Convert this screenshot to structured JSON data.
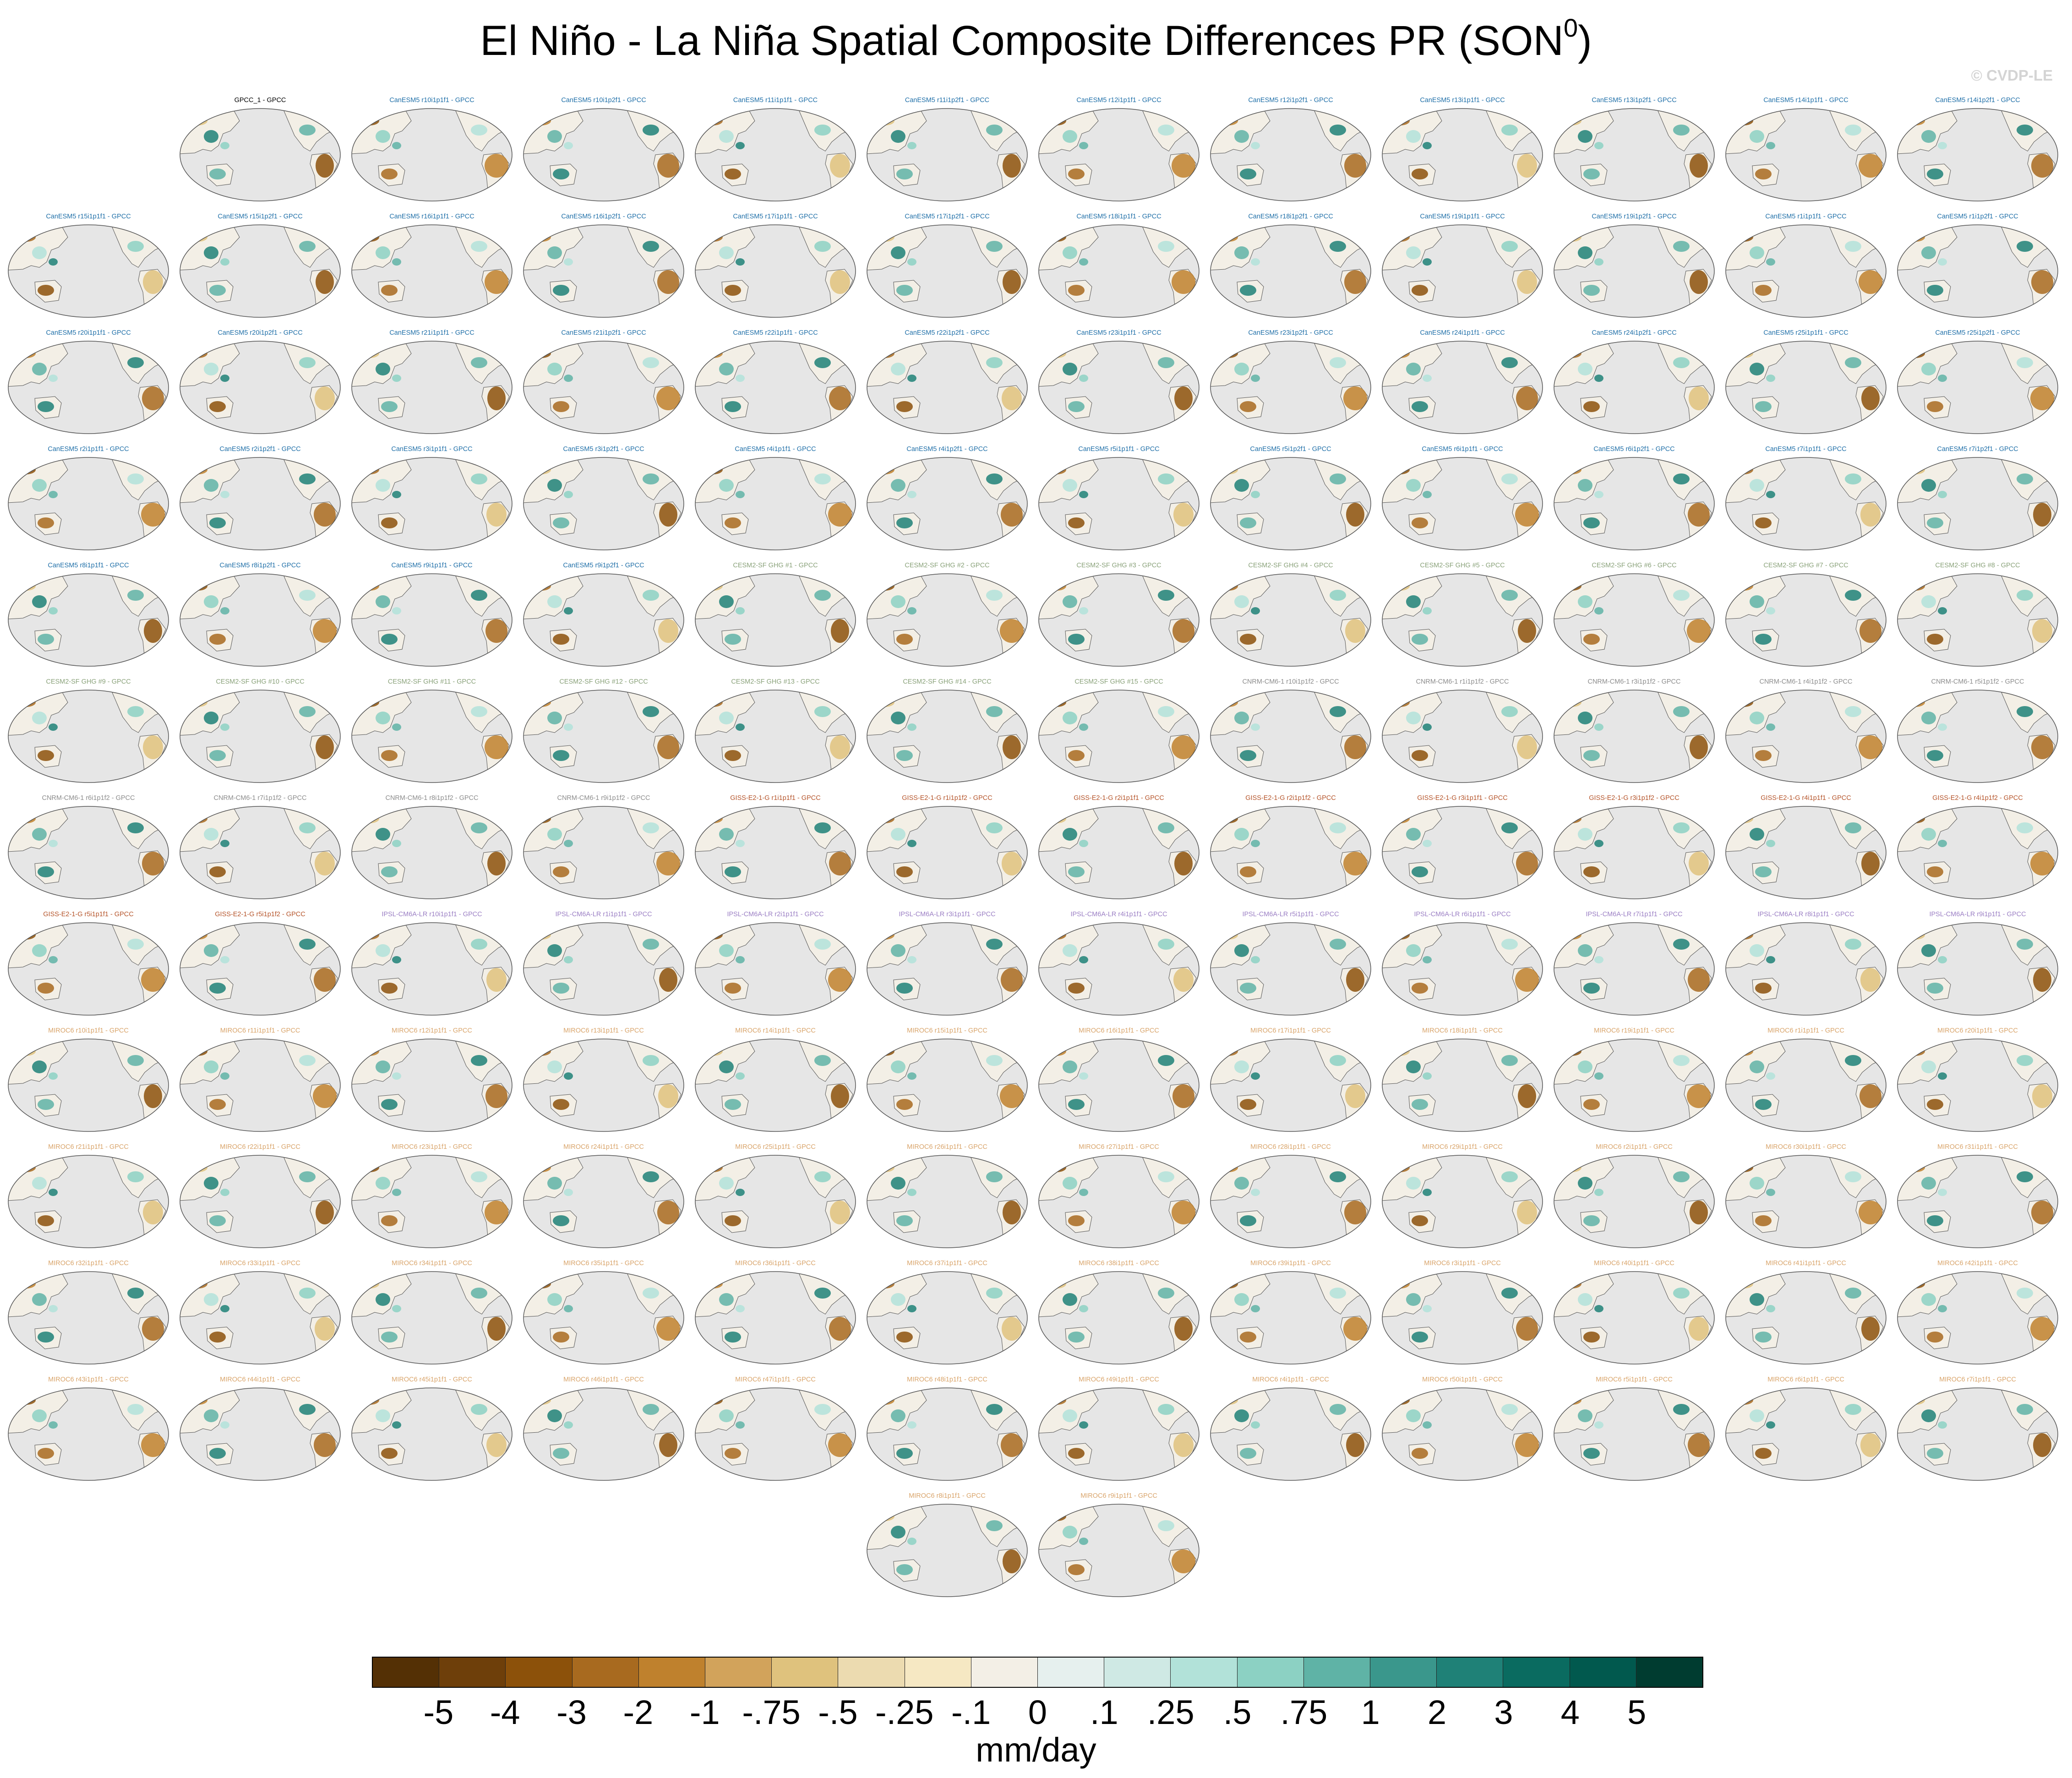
{
  "figure": {
    "title": "El Niño - La Niña Spatial Composite Differences PR (SON",
    "title_superscript": "0",
    "title_suffix": ")",
    "watermark": "© CVDP-LE"
  },
  "panel_rows": [
    [
      {
        "label": "GPCC_1 - GPCC",
        "color": "#000000"
      },
      {
        "label": "CanESM5 r10i1p1f1 - GPCC",
        "color": "#1f6fa8"
      },
      {
        "label": "CanESM5 r10i1p2f1 - GPCC",
        "color": "#1f6fa8"
      },
      {
        "label": "CanESM5 r11i1p1f1 - GPCC",
        "color": "#1f6fa8"
      },
      {
        "label": "CanESM5 r11i1p2f1 - GPCC",
        "color": "#1f6fa8"
      },
      {
        "label": "CanESM5 r12i1p1f1 - GPCC",
        "color": "#1f6fa8"
      },
      {
        "label": "CanESM5 r12i1p2f1 - GPCC",
        "color": "#1f6fa8"
      },
      {
        "label": "CanESM5 r13i1p1f1 - GPCC",
        "color": "#1f6fa8"
      },
      {
        "label": "CanESM5 r13i1p2f1 - GPCC",
        "color": "#1f6fa8"
      },
      {
        "label": "CanESM5 r14i1p1f1 - GPCC",
        "color": "#1f6fa8"
      },
      {
        "label": "CanESM5 r14i1p2f1 - GPCC",
        "color": "#1f6fa8"
      }
    ],
    [
      {
        "label": "CanESM5 r15i1p1f1 - GPCC",
        "color": "#1f6fa8"
      },
      {
        "label": "CanESM5 r15i1p2f1 - GPCC",
        "color": "#1f6fa8"
      },
      {
        "label": "CanESM5 r16i1p1f1 - GPCC",
        "color": "#1f6fa8"
      },
      {
        "label": "CanESM5 r16i1p2f1 - GPCC",
        "color": "#1f6fa8"
      },
      {
        "label": "CanESM5 r17i1p1f1 - GPCC",
        "color": "#1f6fa8"
      },
      {
        "label": "CanESM5 r17i1p2f1 - GPCC",
        "color": "#1f6fa8"
      },
      {
        "label": "CanESM5 r18i1p1f1 - GPCC",
        "color": "#1f6fa8"
      },
      {
        "label": "CanESM5 r18i1p2f1 - GPCC",
        "color": "#1f6fa8"
      },
      {
        "label": "CanESM5 r19i1p1f1 - GPCC",
        "color": "#1f6fa8"
      },
      {
        "label": "CanESM5 r19i1p2f1 - GPCC",
        "color": "#1f6fa8"
      },
      {
        "label": "CanESM5 r1i1p1f1 - GPCC",
        "color": "#1f6fa8"
      },
      {
        "label": "CanESM5 r1i1p2f1 - GPCC",
        "color": "#1f6fa8"
      }
    ],
    [
      {
        "label": "CanESM5 r20i1p1f1 - GPCC",
        "color": "#1f6fa8"
      },
      {
        "label": "CanESM5 r20i1p2f1 - GPCC",
        "color": "#1f6fa8"
      },
      {
        "label": "CanESM5 r21i1p1f1 - GPCC",
        "color": "#1f6fa8"
      },
      {
        "label": "CanESM5 r21i1p2f1 - GPCC",
        "color": "#1f6fa8"
      },
      {
        "label": "CanESM5 r22i1p1f1 - GPCC",
        "color": "#1f6fa8"
      },
      {
        "label": "CanESM5 r22i1p2f1 - GPCC",
        "color": "#1f6fa8"
      },
      {
        "label": "CanESM5 r23i1p1f1 - GPCC",
        "color": "#1f6fa8"
      },
      {
        "label": "CanESM5 r23i1p2f1 - GPCC",
        "color": "#1f6fa8"
      },
      {
        "label": "CanESM5 r24i1p1f1 - GPCC",
        "color": "#1f6fa8"
      },
      {
        "label": "CanESM5 r24i1p2f1 - GPCC",
        "color": "#1f6fa8"
      },
      {
        "label": "CanESM5 r25i1p1f1 - GPCC",
        "color": "#1f6fa8"
      },
      {
        "label": "CanESM5 r25i1p2f1 - GPCC",
        "color": "#1f6fa8"
      }
    ],
    [
      {
        "label": "CanESM5 r2i1p1f1 - GPCC",
        "color": "#1f6fa8"
      },
      {
        "label": "CanESM5 r2i1p2f1 - GPCC",
        "color": "#1f6fa8"
      },
      {
        "label": "CanESM5 r3i1p1f1 - GPCC",
        "color": "#1f6fa8"
      },
      {
        "label": "CanESM5 r3i1p2f1 - GPCC",
        "color": "#1f6fa8"
      },
      {
        "label": "CanESM5 r4i1p1f1 - GPCC",
        "color": "#1f6fa8"
      },
      {
        "label": "CanESM5 r4i1p2f1 - GPCC",
        "color": "#1f6fa8"
      },
      {
        "label": "CanESM5 r5i1p1f1 - GPCC",
        "color": "#1f6fa8"
      },
      {
        "label": "CanESM5 r5i1p2f1 - GPCC",
        "color": "#1f6fa8"
      },
      {
        "label": "CanESM5 r6i1p1f1 - GPCC",
        "color": "#1f6fa8"
      },
      {
        "label": "CanESM5 r6i1p2f1 - GPCC",
        "color": "#1f6fa8"
      },
      {
        "label": "CanESM5 r7i1p1f1 - GPCC",
        "color": "#1f6fa8"
      },
      {
        "label": "CanESM5 r7i1p2f1 - GPCC",
        "color": "#1f6fa8"
      }
    ],
    [
      {
        "label": "CanESM5 r8i1p1f1 - GPCC",
        "color": "#1f6fa8"
      },
      {
        "label": "CanESM5 r8i1p2f1 - GPCC",
        "color": "#1f6fa8"
      },
      {
        "label": "CanESM5 r9i1p1f1 - GPCC",
        "color": "#1f6fa8"
      },
      {
        "label": "CanESM5 r9i1p2f1 - GPCC",
        "color": "#1f6fa8"
      },
      {
        "label": "CESM2-SF GHG #1 - GPCC",
        "color": "#8aa27a"
      },
      {
        "label": "CESM2-SF GHG #2 - GPCC",
        "color": "#8aa27a"
      },
      {
        "label": "CESM2-SF GHG #3 - GPCC",
        "color": "#8aa27a"
      },
      {
        "label": "CESM2-SF GHG #4 - GPCC",
        "color": "#8aa27a"
      },
      {
        "label": "CESM2-SF GHG #5 - GPCC",
        "color": "#8aa27a"
      },
      {
        "label": "CESM2-SF GHG #6 - GPCC",
        "color": "#8aa27a"
      },
      {
        "label": "CESM2-SF GHG #7 - GPCC",
        "color": "#8aa27a"
      },
      {
        "label": "CESM2-SF GHG #8 - GPCC",
        "color": "#8aa27a"
      }
    ],
    [
      {
        "label": "CESM2-SF GHG #9 - GPCC",
        "color": "#8aa27a"
      },
      {
        "label": "CESM2-SF GHG #10 - GPCC",
        "color": "#8aa27a"
      },
      {
        "label": "CESM2-SF GHG #11 - GPCC",
        "color": "#8aa27a"
      },
      {
        "label": "CESM2-SF GHG #12 - GPCC",
        "color": "#8aa27a"
      },
      {
        "label": "CESM2-SF GHG #13 - GPCC",
        "color": "#8aa27a"
      },
      {
        "label": "CESM2-SF GHG #14 - GPCC",
        "color": "#8aa27a"
      },
      {
        "label": "CESM2-SF GHG #15 - GPCC",
        "color": "#8aa27a"
      },
      {
        "label": "CNRM-CM6-1 r10i1p1f2 - GPCC",
        "color": "#8c8c8c"
      },
      {
        "label": "CNRM-CM6-1 r1i1p1f2 - GPCC",
        "color": "#8c8c8c"
      },
      {
        "label": "CNRM-CM6-1 r3i1p1f2 - GPCC",
        "color": "#8c8c8c"
      },
      {
        "label": "CNRM-CM6-1 r4i1p1f2 - GPCC",
        "color": "#8c8c8c"
      },
      {
        "label": "CNRM-CM6-1 r5i1p1f2 - GPCC",
        "color": "#8c8c8c"
      }
    ],
    [
      {
        "label": "CNRM-CM6-1 r6i1p1f2 - GPCC",
        "color": "#8c8c8c"
      },
      {
        "label": "CNRM-CM6-1 r7i1p1f2 - GPCC",
        "color": "#8c8c8c"
      },
      {
        "label": "CNRM-CM6-1 r8i1p1f2 - GPCC",
        "color": "#8c8c8c"
      },
      {
        "label": "CNRM-CM6-1 r9i1p1f2 - GPCC",
        "color": "#8c8c8c"
      },
      {
        "label": "GISS-E2-1-G r1i1p1f1 - GPCC",
        "color": "#b5542a"
      },
      {
        "label": "GISS-E2-1-G r1i1p1f2 - GPCC",
        "color": "#b5542a"
      },
      {
        "label": "GISS-E2-1-G r2i1p1f1 - GPCC",
        "color": "#b5542a"
      },
      {
        "label": "GISS-E2-1-G r2i1p1f2 - GPCC",
        "color": "#b5542a"
      },
      {
        "label": "GISS-E2-1-G r3i1p1f1 - GPCC",
        "color": "#b5542a"
      },
      {
        "label": "GISS-E2-1-G r3i1p1f2 - GPCC",
        "color": "#b5542a"
      },
      {
        "label": "GISS-E2-1-G r4i1p1f1 - GPCC",
        "color": "#b5542a"
      },
      {
        "label": "GISS-E2-1-G r4i1p1f2 - GPCC",
        "color": "#b5542a"
      }
    ],
    [
      {
        "label": "GISS-E2-1-G r5i1p1f1 - GPCC",
        "color": "#b5542a"
      },
      {
        "label": "GISS-E2-1-G r5i1p1f2 - GPCC",
        "color": "#b5542a"
      },
      {
        "label": "IPSL-CM6A-LR r10i1p1f1 - GPCC",
        "color": "#9b7fc4"
      },
      {
        "label": "IPSL-CM6A-LR r1i1p1f1 - GPCC",
        "color": "#9b7fc4"
      },
      {
        "label": "IPSL-CM6A-LR r2i1p1f1 - GPCC",
        "color": "#9b7fc4"
      },
      {
        "label": "IPSL-CM6A-LR r3i1p1f1 - GPCC",
        "color": "#9b7fc4"
      },
      {
        "label": "IPSL-CM6A-LR r4i1p1f1 - GPCC",
        "color": "#9b7fc4"
      },
      {
        "label": "IPSL-CM6A-LR r5i1p1f1 - GPCC",
        "color": "#9b7fc4"
      },
      {
        "label": "IPSL-CM6A-LR r6i1p1f1 - GPCC",
        "color": "#9b7fc4"
      },
      {
        "label": "IPSL-CM6A-LR r7i1p1f1 - GPCC",
        "color": "#9b7fc4"
      },
      {
        "label": "IPSL-CM6A-LR r8i1p1f1 - GPCC",
        "color": "#9b7fc4"
      },
      {
        "label": "IPSL-CM6A-LR r9i1p1f1 - GPCC",
        "color": "#9b7fc4"
      }
    ],
    [
      {
        "label": "MIROC6 r10i1p1f1 - GPCC",
        "color": "#d9a46a"
      },
      {
        "label": "MIROC6 r11i1p1f1 - GPCC",
        "color": "#d9a46a"
      },
      {
        "label": "MIROC6 r12i1p1f1 - GPCC",
        "color": "#d9a46a"
      },
      {
        "label": "MIROC6 r13i1p1f1 - GPCC",
        "color": "#d9a46a"
      },
      {
        "label": "MIROC6 r14i1p1f1 - GPCC",
        "color": "#d9a46a"
      },
      {
        "label": "MIROC6 r15i1p1f1 - GPCC",
        "color": "#d9a46a"
      },
      {
        "label": "MIROC6 r16i1p1f1 - GPCC",
        "color": "#d9a46a"
      },
      {
        "label": "MIROC6 r17i1p1f1 - GPCC",
        "color": "#d9a46a"
      },
      {
        "label": "MIROC6 r18i1p1f1 - GPCC",
        "color": "#d9a46a"
      },
      {
        "label": "MIROC6 r19i1p1f1 - GPCC",
        "color": "#d9a46a"
      },
      {
        "label": "MIROC6 r1i1p1f1 - GPCC",
        "color": "#d9a46a"
      },
      {
        "label": "MIROC6 r20i1p1f1 - GPCC",
        "color": "#d9a46a"
      }
    ],
    [
      {
        "label": "MIROC6 r21i1p1f1 - GPCC",
        "color": "#d9a46a"
      },
      {
        "label": "MIROC6 r22i1p1f1 - GPCC",
        "color": "#d9a46a"
      },
      {
        "label": "MIROC6 r23i1p1f1 - GPCC",
        "color": "#d9a46a"
      },
      {
        "label": "MIROC6 r24i1p1f1 - GPCC",
        "color": "#d9a46a"
      },
      {
        "label": "MIROC6 r25i1p1f1 - GPCC",
        "color": "#d9a46a"
      },
      {
        "label": "MIROC6 r26i1p1f1 - GPCC",
        "color": "#d9a46a"
      },
      {
        "label": "MIROC6 r27i1p1f1 - GPCC",
        "color": "#d9a46a"
      },
      {
        "label": "MIROC6 r28i1p1f1 - GPCC",
        "color": "#d9a46a"
      },
      {
        "label": "MIROC6 r29i1p1f1 - GPCC",
        "color": "#d9a46a"
      },
      {
        "label": "MIROC6 r2i1p1f1 - GPCC",
        "color": "#d9a46a"
      },
      {
        "label": "MIROC6 r30i1p1f1 - GPCC",
        "color": "#d9a46a"
      },
      {
        "label": "MIROC6 r31i1p1f1 - GPCC",
        "color": "#d9a46a"
      }
    ],
    [
      {
        "label": "MIROC6 r32i1p1f1 - GPCC",
        "color": "#d9a46a"
      },
      {
        "label": "MIROC6 r33i1p1f1 - GPCC",
        "color": "#d9a46a"
      },
      {
        "label": "MIROC6 r34i1p1f1 - GPCC",
        "color": "#d9a46a"
      },
      {
        "label": "MIROC6 r35i1p1f1 - GPCC",
        "color": "#d9a46a"
      },
      {
        "label": "MIROC6 r36i1p1f1 - GPCC",
        "color": "#d9a46a"
      },
      {
        "label": "MIROC6 r37i1p1f1 - GPCC",
        "color": "#d9a46a"
      },
      {
        "label": "MIROC6 r38i1p1f1 - GPCC",
        "color": "#d9a46a"
      },
      {
        "label": "MIROC6 r39i1p1f1 - GPCC",
        "color": "#d9a46a"
      },
      {
        "label": "MIROC6 r3i1p1f1 - GPCC",
        "color": "#d9a46a"
      },
      {
        "label": "MIROC6 r40i1p1f1 - GPCC",
        "color": "#d9a46a"
      },
      {
        "label": "MIROC6 r41i1p1f1 - GPCC",
        "color": "#d9a46a"
      },
      {
        "label": "MIROC6 r42i1p1f1 - GPCC",
        "color": "#d9a46a"
      }
    ],
    [
      {
        "label": "MIROC6 r43i1p1f1 - GPCC",
        "color": "#d9a46a"
      },
      {
        "label": "MIROC6 r44i1p1f1 - GPCC",
        "color": "#d9a46a"
      },
      {
        "label": "MIROC6 r45i1p1f1 - GPCC",
        "color": "#d9a46a"
      },
      {
        "label": "MIROC6 r46i1p1f1 - GPCC",
        "color": "#d9a46a"
      },
      {
        "label": "MIROC6 r47i1p1f1 - GPCC",
        "color": "#d9a46a"
      },
      {
        "label": "MIROC6 r48i1p1f1 - GPCC",
        "color": "#d9a46a"
      },
      {
        "label": "MIROC6 r49i1p1f1 - GPCC",
        "color": "#d9a46a"
      },
      {
        "label": "MIROC6 r4i1p1f1 - GPCC",
        "color": "#d9a46a"
      },
      {
        "label": "MIROC6 r50i1p1f1 - GPCC",
        "color": "#d9a46a"
      },
      {
        "label": "MIROC6 r5i1p1f1 - GPCC",
        "color": "#d9a46a"
      },
      {
        "label": "MIROC6 r6i1p1f1 - GPCC",
        "color": "#d9a46a"
      },
      {
        "label": "MIROC6 r7i1p1f1 - GPCC",
        "color": "#d9a46a"
      }
    ],
    [
      {
        "label": "MIROC6 r8i1p1f1 - GPCC",
        "color": "#d9a46a"
      },
      {
        "label": "MIROC6 r9i1p1f1 - GPCC",
        "color": "#d9a46a"
      }
    ]
  ],
  "colorbar": {
    "units": "mm/day",
    "colors": [
      "#543005",
      "#6e3f0a",
      "#8c510a",
      "#a86a1f",
      "#bf812d",
      "#d2a35b",
      "#dfc27d",
      "#ecdbb0",
      "#f6e8c3",
      "#f3efe6",
      "#e6f0ee",
      "#cfe9e4",
      "#b2e2d9",
      "#8cd1c3",
      "#5fb3a6",
      "#3a978c",
      "#1f8177",
      "#0a6b60",
      "#01594e",
      "#003c30"
    ],
    "ticks": [
      "-5",
      "-4",
      "-3",
      "-2",
      "-1",
      "-.75",
      "-.5",
      "-.25",
      "-.1",
      "0",
      ".1",
      ".25",
      ".5",
      ".75",
      "1",
      "2",
      "3",
      "4",
      "5"
    ]
  }
}
